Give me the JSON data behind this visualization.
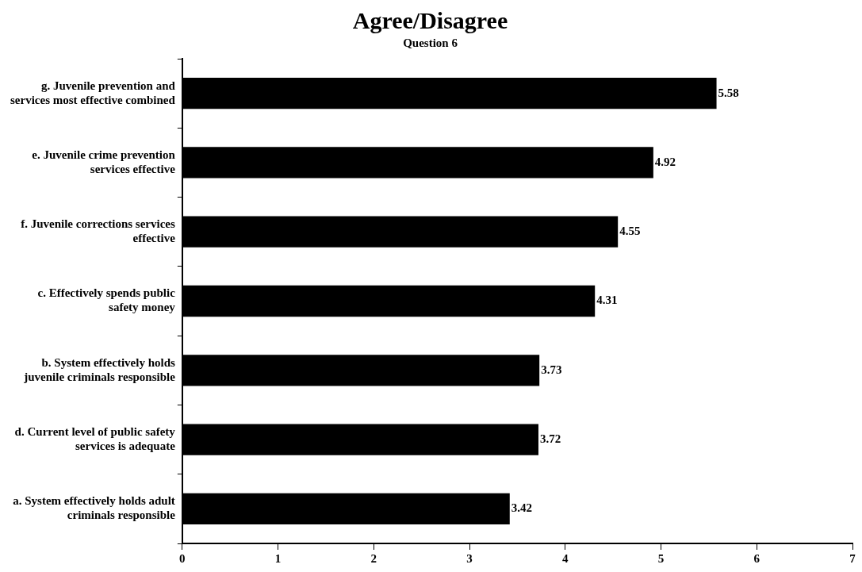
{
  "chart_data": {
    "type": "bar",
    "orientation": "horizontal",
    "title": "Agree/Disagree",
    "subtitle": "Question 6",
    "categories": [
      "g. Juvenile prevention and services most effective combined",
      "e. Juvenile crime prevention services effective",
      "f. Juvenile corrections services effective",
      "c. Effectively spends public safety money",
      "b. System effectively holds juvenile criminals responsible",
      "d. Current level of public safety services is adequate",
      "a. System effectively holds adult criminals responsible"
    ],
    "values": [
      5.58,
      4.92,
      4.55,
      4.31,
      3.73,
      3.72,
      3.42
    ],
    "color": "#000000",
    "xlim": [
      0,
      7
    ],
    "xticks": [
      0,
      1,
      2,
      3,
      4,
      5,
      6,
      7
    ],
    "data_labels": true,
    "grid": false,
    "legend": false
  }
}
